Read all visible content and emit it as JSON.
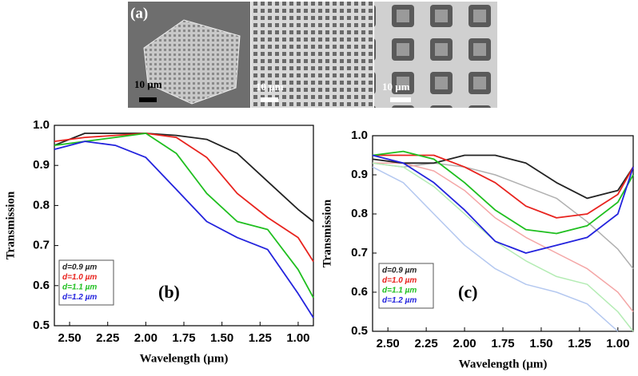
{
  "images": {
    "label": "(a)",
    "scale_bars": [
      "10 µm",
      "10 µm",
      "10 µm"
    ]
  },
  "chart_data": [
    {
      "type": "line",
      "annotation": "(b)",
      "xlabel": "Wavelength (µm)",
      "ylabel": "Transmission",
      "x": [
        2.6,
        2.4,
        2.2,
        2.0,
        1.8,
        1.6,
        1.4,
        1.2,
        1.0,
        0.9
      ],
      "series": [
        {
          "name": "d=0.9 µm",
          "color": "#222222",
          "values": [
            0.95,
            0.98,
            0.98,
            0.98,
            0.975,
            0.965,
            0.93,
            0.86,
            0.79,
            0.76
          ]
        },
        {
          "name": "d=1.0 µm",
          "color": "#e8231e",
          "values": [
            0.96,
            0.97,
            0.975,
            0.98,
            0.97,
            0.92,
            0.83,
            0.77,
            0.72,
            0.66
          ]
        },
        {
          "name": "d=1.1 µm",
          "color": "#1fbf1f",
          "values": [
            0.95,
            0.96,
            0.97,
            0.98,
            0.93,
            0.83,
            0.76,
            0.74,
            0.64,
            0.57
          ]
        },
        {
          "name": "d=1.2 µm",
          "color": "#2323dd",
          "values": [
            0.94,
            0.96,
            0.95,
            0.92,
            0.84,
            0.76,
            0.72,
            0.69,
            0.58,
            0.52
          ]
        }
      ],
      "xlim": [
        2.6,
        0.9
      ],
      "ylim": [
        0.5,
        1.0
      ],
      "xticks": [
        {
          "value": 2.5,
          "label": "2.50"
        },
        2.25,
        {
          "value": 2.0,
          "label": "2.00"
        },
        1.75,
        {
          "value": 1.5,
          "label": "1.50"
        },
        1.25,
        {
          "value": 1.0,
          "label": "1.00"
        }
      ],
      "yticks": [
        0.5,
        0.6,
        0.7,
        0.8,
        0.9,
        {
          "value": 1.0,
          "label": "1.0"
        }
      ]
    },
    {
      "type": "line",
      "annotation": "(c)",
      "xlabel": "Wavelength (µm)",
      "ylabel": "Transmission",
      "x": [
        2.6,
        2.4,
        2.2,
        2.0,
        1.8,
        1.6,
        1.4,
        1.2,
        1.0,
        0.9
      ],
      "faded_series": [
        {
          "color": "#b0b0b0",
          "values": [
            0.93,
            0.92,
            0.93,
            0.92,
            0.9,
            0.87,
            0.84,
            0.78,
            0.71,
            0.66
          ]
        },
        {
          "color": "#f4a6a6",
          "values": [
            0.93,
            0.93,
            0.91,
            0.86,
            0.79,
            0.74,
            0.7,
            0.66,
            0.6,
            0.55
          ]
        },
        {
          "color": "#b4ecb4",
          "values": [
            0.93,
            0.92,
            0.87,
            0.8,
            0.73,
            0.68,
            0.64,
            0.62,
            0.55,
            0.5
          ]
        },
        {
          "color": "#b4c8f0",
          "values": [
            0.92,
            0.88,
            0.8,
            0.72,
            0.66,
            0.62,
            0.6,
            0.57,
            0.5,
            null
          ]
        }
      ],
      "series": [
        {
          "name": "d=0.9 µm",
          "color": "#222222",
          "values": [
            0.94,
            0.93,
            0.93,
            0.95,
            0.95,
            0.93,
            0.88,
            0.84,
            0.86,
            0.92
          ]
        },
        {
          "name": "d=1.0 µm",
          "color": "#e8231e",
          "values": [
            0.95,
            0.95,
            0.95,
            0.92,
            0.88,
            0.82,
            0.79,
            0.8,
            0.85,
            0.92
          ]
        },
        {
          "name": "d=1.1 µm",
          "color": "#1fbf1f",
          "values": [
            0.95,
            0.96,
            0.94,
            0.88,
            0.81,
            0.76,
            0.75,
            0.77,
            0.83,
            0.9
          ]
        },
        {
          "name": "d=1.2 µm",
          "color": "#2323dd",
          "values": [
            0.95,
            0.93,
            0.88,
            0.81,
            0.73,
            0.7,
            0.72,
            0.74,
            0.8,
            0.92
          ]
        }
      ],
      "xlim": [
        2.6,
        0.9
      ],
      "ylim": [
        0.5,
        1.0
      ],
      "xticks": [
        {
          "value": 2.5,
          "label": "2.50"
        },
        2.25,
        {
          "value": 2.0,
          "label": "2.00"
        },
        1.75,
        {
          "value": 1.5,
          "label": "1.50"
        },
        1.25,
        {
          "value": 1.0,
          "label": "1.00"
        }
      ],
      "yticks": [
        0.5,
        0.6,
        0.7,
        0.8,
        0.9,
        {
          "value": 1.0,
          "label": "1.0"
        }
      ]
    }
  ]
}
